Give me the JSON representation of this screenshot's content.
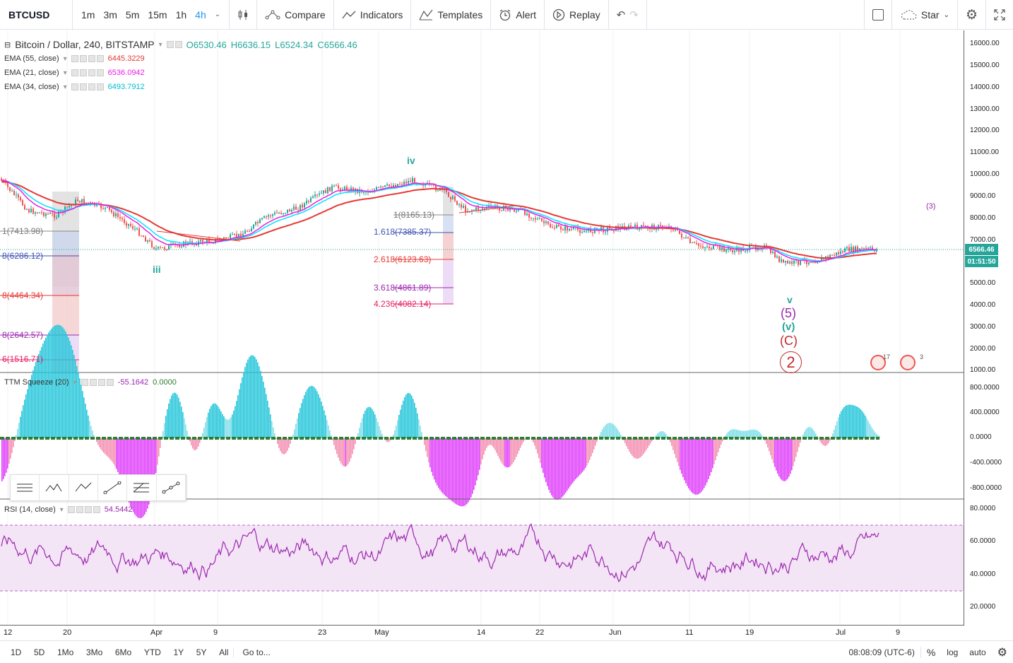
{
  "toolbar": {
    "symbol": "BTCUSD",
    "timeframes": [
      "1m",
      "3m",
      "5m",
      "15m",
      "1h",
      "4h"
    ],
    "active_timeframe": "4h",
    "compare": "Compare",
    "indicators": "Indicators",
    "templates": "Templates",
    "alert": "Alert",
    "replay": "Replay",
    "star": "Star"
  },
  "main_legend": {
    "title": "Bitcoin / Dollar, 240, BITSTAMP",
    "open": "O6530.46",
    "high": "H6636.15",
    "low": "L6524.34",
    "close": "C6566.46"
  },
  "ema": [
    {
      "label": "EMA (55, close)",
      "value": "6445.3229",
      "color": "#e53935"
    },
    {
      "label": "EMA (21, close)",
      "value": "6536.0942",
      "color": "#e91ee6"
    },
    {
      "label": "EMA (34, close)",
      "value": "6493.7912",
      "color": "#00e5ff"
    }
  ],
  "price_axis": [
    "16000.00",
    "15000.00",
    "14000.00",
    "13000.00",
    "12000.00",
    "11000.00",
    "10000.00",
    "9000.00",
    "8000.00",
    "7000.00",
    "5000.00",
    "4000.00",
    "3000.00",
    "2000.00",
    "1000.00"
  ],
  "price_tag": {
    "price": "6566.46",
    "countdown": "01:51:50"
  },
  "ttm": {
    "label": "TTM Squeeze (20)",
    "value1": "-55.1642",
    "value2": "0.0000",
    "axis": [
      "800.0000",
      "400.0000",
      "0.0000",
      "-400.0000",
      "-800.0000"
    ]
  },
  "rsi": {
    "label": "RSI (14, close)",
    "value": "54.5442",
    "axis": [
      "80.0000",
      "60.0000",
      "40.0000",
      "20.0000"
    ]
  },
  "time_axis": [
    "12",
    "20",
    "Apr",
    "9",
    "23",
    "May",
    "14",
    "22",
    "Jun",
    "11",
    "19",
    "Jul",
    "9"
  ],
  "fib_left": [
    "1(7413.98)",
    "8(6286.12)",
    "8(4464.34)",
    "8(2642.57)",
    "6(1516.71)"
  ],
  "fib_mid": [
    "1(8165.13)",
    "1.618(7385.37)",
    "2.618(6123.63)",
    "3.618(4861.89)",
    "4.236(4082.14)"
  ],
  "waves": {
    "iv": "iv",
    "iii": "iii",
    "v": "v",
    "p5": "(5)",
    "pv": "(v)",
    "pC": "(C)",
    "c2": "2",
    "p3_right": "(3)"
  },
  "events": {
    "e1": "17",
    "e2": "3"
  },
  "bottom": {
    "ranges": [
      "1D",
      "5D",
      "1Mo",
      "3Mo",
      "6Mo",
      "YTD",
      "1Y",
      "5Y",
      "All"
    ],
    "goto": "Go to...",
    "clock": "08:08:09 (UTC-6)",
    "pct": "%",
    "log": "log",
    "auto": "auto"
  },
  "colors": {
    "up": "#26a69a",
    "down": "#ef5350",
    "ema55": "#e53935",
    "ema21": "#e91ee6",
    "ema34": "#00e5ff",
    "rsi": "#9c27b0",
    "accent": "#2196f3"
  }
}
